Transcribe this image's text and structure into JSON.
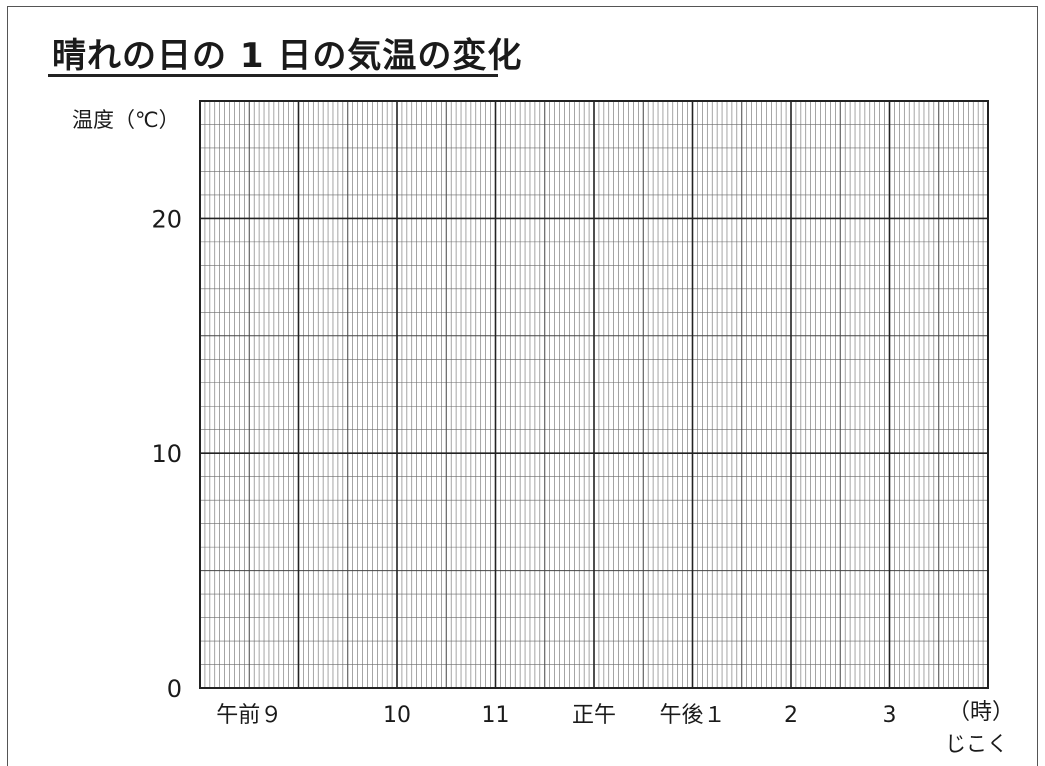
{
  "chart_data": {
    "type": "line",
    "title": "晴れの日の 1 日の気温の変化",
    "ylabel": "温度（℃）",
    "xlabel_unit": "（時）",
    "xlabel": "じこく",
    "ylim": [
      0,
      25
    ],
    "yticks": [
      {
        "value": 0,
        "label": "0"
      },
      {
        "value": 10,
        "label": "10"
      },
      {
        "value": 20,
        "label": "20"
      }
    ],
    "x_range": [
      0,
      8
    ],
    "xticks": [
      {
        "value": 0.5,
        "label": "午前９"
      },
      {
        "value": 2.0,
        "label": "10"
      },
      {
        "value": 3.0,
        "label": "11"
      },
      {
        "value": 4.0,
        "label": "正午"
      },
      {
        "value": 5.0,
        "label": "午後１"
      },
      {
        "value": 6.0,
        "label": "2"
      },
      {
        "value": 7.0,
        "label": "3"
      }
    ],
    "grid": true,
    "series": []
  }
}
